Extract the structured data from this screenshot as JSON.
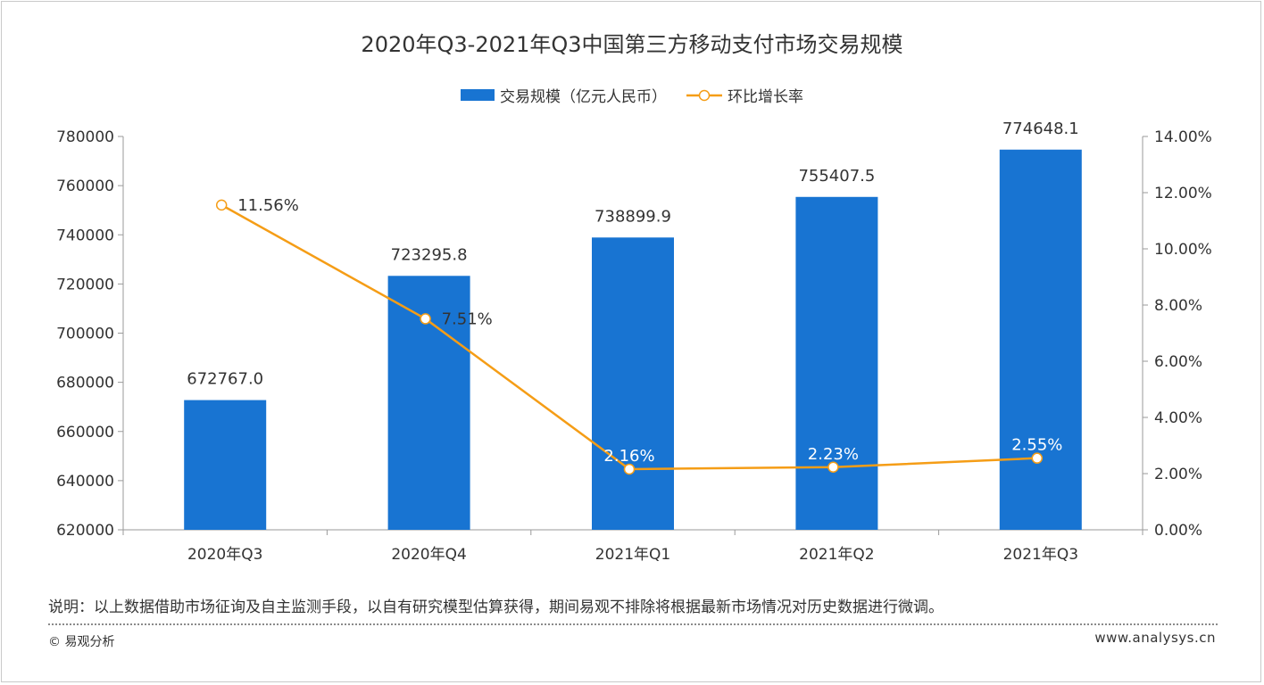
{
  "title": "2020年Q3-2021年Q3中国第三方移动支付市场交易规模",
  "legend": {
    "bar_label": "交易规模（亿元人民币）",
    "line_label": "环比增长率"
  },
  "colors": {
    "bar": "#1874d2",
    "line": "#f59d16",
    "axis": "#9a9a9a",
    "text": "#333333"
  },
  "chart_data": {
    "type": "bar",
    "title": "2020年Q3-2021年Q3中国第三方移动支付市场交易规模",
    "categories": [
      "2020年Q3",
      "2020年Q4",
      "2021年Q1",
      "2021年Q2",
      "2021年Q3"
    ],
    "series": [
      {
        "name": "交易规模（亿元人民币）",
        "type": "bar",
        "axis": "left",
        "values": [
          672767.0,
          723295.8,
          738899.9,
          755407.5,
          774648.1
        ],
        "labels": [
          "672767.0",
          "723295.8",
          "738899.9",
          "755407.5",
          "774648.1"
        ]
      },
      {
        "name": "环比增长率",
        "type": "line",
        "axis": "right",
        "values": [
          11.56,
          7.51,
          2.16,
          2.23,
          2.55
        ],
        "labels": [
          "11.56%",
          "7.51%",
          "2.16%",
          "2.23%",
          "2.55%"
        ]
      }
    ],
    "y_left": {
      "min": 620000,
      "max": 780000,
      "ticks": [
        "620000",
        "640000",
        "660000",
        "680000",
        "700000",
        "720000",
        "740000",
        "760000",
        "780000"
      ]
    },
    "y_right": {
      "min": 0,
      "max": 14,
      "ticks": [
        "0.00%",
        "2.00%",
        "4.00%",
        "6.00%",
        "8.00%",
        "10.00%",
        "12.00%",
        "14.00%"
      ]
    },
    "grid": false,
    "legend_position": "top-center"
  },
  "note": "说明：以上数据借助市场征询及自主监测手段，以自有研究模型估算获得，期间易观不排除将根据最新市场情况对历史数据进行微调。",
  "footer": {
    "copyright": "© 易观分析",
    "url": "www.analysys.cn"
  }
}
